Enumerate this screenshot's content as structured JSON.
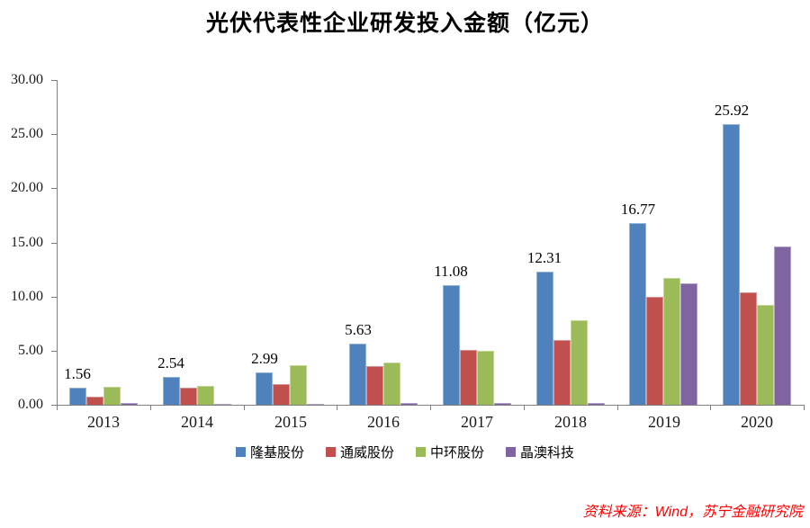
{
  "page": {
    "title": "光伏代表性企业研发投入金额（亿元）",
    "source_note": "资料来源：Wind，苏宁金融研究院"
  },
  "colors": {
    "axis": "#7F7F7F",
    "title_text": "#000000",
    "source_text": "#FF0000",
    "background": "#FFFFFF"
  },
  "chart_data": {
    "type": "bar",
    "title": "光伏代表性企业研发投入金额（亿元）",
    "categories": [
      "2013",
      "2014",
      "2015",
      "2016",
      "2017",
      "2018",
      "2019",
      "2020"
    ],
    "series": [
      {
        "name": "隆基股份",
        "color": "#4F81BD",
        "border_color": "#95B3D7",
        "values": [
          1.56,
          2.54,
          2.99,
          5.63,
          11.08,
          12.31,
          16.77,
          25.92
        ],
        "data_labels": [
          "1.56",
          "2.54",
          "2.99",
          "5.63",
          "11.08",
          "12.31",
          "16.77",
          "25.92"
        ]
      },
      {
        "name": "通威股份",
        "color": "#C0504D",
        "border_color": "#D99694",
        "values": [
          0.75,
          1.55,
          1.9,
          3.6,
          5.1,
          6.0,
          10.0,
          10.4
        ]
      },
      {
        "name": "中环股份",
        "color": "#9BBB59",
        "border_color": "#C3D69B",
        "values": [
          1.7,
          1.75,
          3.7,
          3.9,
          5.0,
          7.8,
          11.7,
          9.2
        ]
      },
      {
        "name": "晶澳科技",
        "color": "#8064A2",
        "border_color": "#B3A2C7",
        "values": [
          0.15,
          0.1,
          0.1,
          0.2,
          0.2,
          0.2,
          11.2,
          14.6
        ]
      }
    ],
    "ylim": [
      0,
      30
    ],
    "ytick_step": 5,
    "ytick_labels": [
      "0.00",
      "5.00",
      "10.00",
      "15.00",
      "20.00",
      "25.00",
      "30.00"
    ],
    "grid": false,
    "legend_position": "bottom"
  }
}
